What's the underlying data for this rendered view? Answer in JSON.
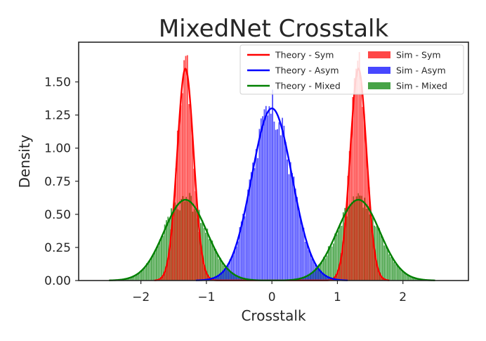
{
  "chart_data": {
    "type": "histogram+line",
    "title": "MixedNet Crosstalk",
    "xlabel": "Crosstalk",
    "ylabel": "Density",
    "xlim": [
      -2.95,
      3.0
    ],
    "ylim": [
      0,
      1.8
    ],
    "xticks": [
      -2,
      -1,
      0,
      1,
      2
    ],
    "xtick_labels": [
      "−2",
      "−1",
      "0",
      "1",
      "2"
    ],
    "yticks": [
      0.0,
      0.25,
      0.5,
      0.75,
      1.0,
      1.25,
      1.5
    ],
    "ytick_labels": [
      "0.00",
      "0.25",
      "0.50",
      "0.75",
      "1.00",
      "1.25",
      "1.50"
    ],
    "grid": false,
    "legend_position": "top-right",
    "legend_columns": 2,
    "series": [
      {
        "name": "Theory - Sym",
        "kind": "line",
        "color": "#ff0000",
        "components": [
          {
            "mean": -1.32,
            "peak": 1.6
          },
          {
            "mean": 1.32,
            "peak": 1.6
          }
        ]
      },
      {
        "name": "Theory - Asym",
        "kind": "line",
        "color": "#0000ff",
        "components": [
          {
            "mean": 0.0,
            "peak": 1.3
          }
        ]
      },
      {
        "name": "Theory - Mixed",
        "kind": "line",
        "color": "#008000",
        "components": [
          {
            "mean": -1.32,
            "peak": 0.61
          },
          {
            "mean": 1.32,
            "peak": 0.61
          }
        ]
      },
      {
        "name": "Sim - Sym",
        "kind": "hist",
        "color": "#ff0000",
        "components": [
          {
            "mean": -1.32,
            "peak": 1.6
          },
          {
            "mean": 1.32,
            "peak": 1.6
          }
        ]
      },
      {
        "name": "Sim - Asym",
        "kind": "hist",
        "color": "#0000ff",
        "components": [
          {
            "mean": 0.0,
            "peak": 1.3
          }
        ]
      },
      {
        "name": "Sim - Mixed",
        "kind": "hist",
        "color": "#008000",
        "components": [
          {
            "mean": -1.32,
            "peak": 0.61
          },
          {
            "mean": 1.32,
            "peak": 0.61
          }
        ]
      }
    ],
    "legend_entries": [
      {
        "label": "Theory - Sym",
        "kind": "line",
        "color": "#ff0000"
      },
      {
        "label": "Sim - Sym",
        "kind": "patch",
        "color": "#ff0000"
      },
      {
        "label": "Theory - Asym",
        "kind": "line",
        "color": "#0000ff"
      },
      {
        "label": "Sim - Asym",
        "kind": "patch",
        "color": "#0000ff"
      },
      {
        "label": "Theory - Mixed",
        "kind": "line",
        "color": "#008000"
      },
      {
        "label": "Sim - Mixed",
        "kind": "patch",
        "color": "#008000"
      }
    ]
  }
}
